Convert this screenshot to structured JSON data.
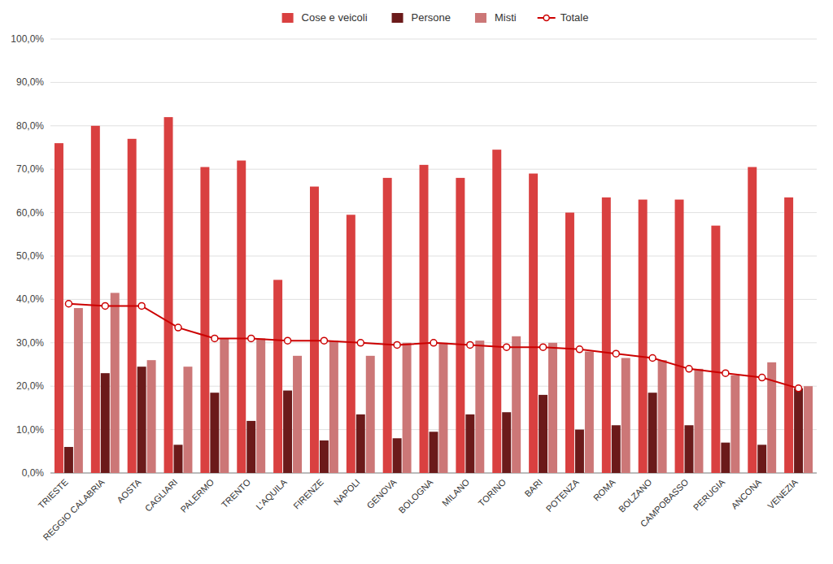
{
  "chart_data": {
    "type": "bar",
    "categories": [
      "TRIESTE",
      "REGGIO CALABRIA",
      "AOSTA",
      "CAGLIARI",
      "PALERMO",
      "TRENTO",
      "L'AQUILA",
      "FIRENZE",
      "NAPOLI",
      "GENOVA",
      "BOLOGNA",
      "MILANO",
      "TORINO",
      "BARI",
      "POTENZA",
      "ROMA",
      "BOLZANO",
      "CAMPOBASSO",
      "PERUGIA",
      "ANCONA",
      "VENEZIA"
    ],
    "series": [
      {
        "name": "Cose e veicoli",
        "color": "#d94040",
        "values": [
          76.0,
          80.0,
          77.0,
          82.0,
          70.5,
          72.0,
          44.5,
          66.0,
          59.5,
          68.0,
          71.0,
          68.0,
          74.5,
          69.0,
          60.0,
          63.5,
          63.0,
          63.0,
          57.0,
          70.5,
          63.5
        ]
      },
      {
        "name": "Persone",
        "color": "#6b1a1a",
        "values": [
          6.0,
          23.0,
          24.5,
          6.5,
          18.5,
          12.0,
          19.0,
          7.5,
          13.5,
          8.0,
          9.5,
          13.5,
          14.0,
          18.0,
          10.0,
          11.0,
          18.5,
          11.0,
          7.0,
          6.5,
          19.5
        ]
      },
      {
        "name": "Misti",
        "color": "#cc7777",
        "values": [
          38.0,
          41.5,
          26.0,
          24.5,
          31.0,
          31.0,
          27.0,
          30.5,
          27.0,
          30.0,
          30.0,
          30.5,
          31.5,
          30.0,
          28.0,
          26.5,
          26.0,
          24.0,
          22.5,
          25.5,
          20.0
        ]
      },
      {
        "name": "Totale",
        "type": "line",
        "color": "#cc0000",
        "marker": "circle",
        "values": [
          39.0,
          38.5,
          38.5,
          33.5,
          31.0,
          31.0,
          30.5,
          30.5,
          30.0,
          29.5,
          30.0,
          29.5,
          29.0,
          29.0,
          28.5,
          27.5,
          26.5,
          24.0,
          23.0,
          22.0,
          19.5
        ]
      }
    ],
    "ylim": [
      0.0,
      100.0
    ],
    "yticks": [
      {
        "value": 0.0,
        "label": "0,0%"
      },
      {
        "value": 10.0,
        "label": "10,0%"
      },
      {
        "value": 20.0,
        "label": "20,0%"
      },
      {
        "value": 30.0,
        "label": "30,0%"
      },
      {
        "value": 40.0,
        "label": "40,0%"
      },
      {
        "value": 50.0,
        "label": "50,0%"
      },
      {
        "value": 60.0,
        "label": "60,0%"
      },
      {
        "value": 70.0,
        "label": "70,0%"
      },
      {
        "value": 80.0,
        "label": "80,0%"
      },
      {
        "value": 90.0,
        "label": "90,0%"
      },
      {
        "value": 100.0,
        "label": "100,0%"
      }
    ],
    "grid": true,
    "legend": "top"
  }
}
